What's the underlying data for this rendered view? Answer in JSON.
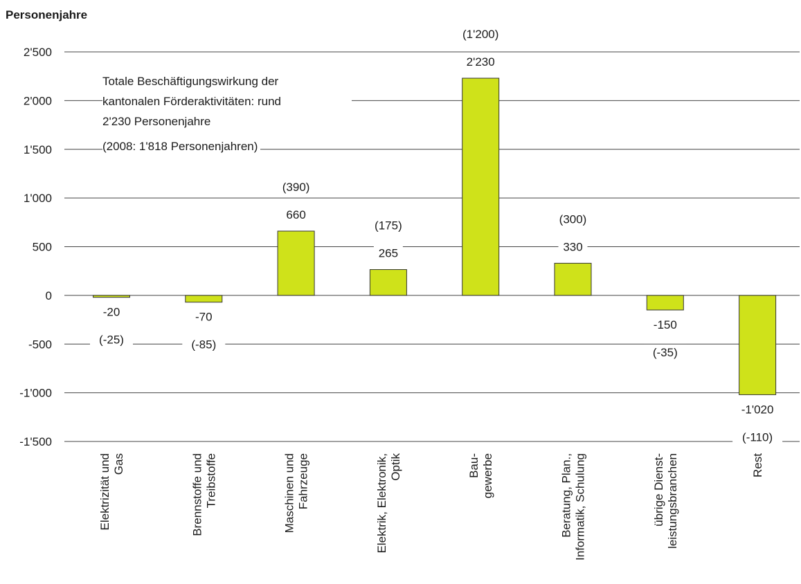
{
  "chart_data": {
    "type": "bar",
    "ylabel": "Personenjahre",
    "ylim": [
      -1500,
      2500
    ],
    "yticks": [
      2500,
      2000,
      1500,
      1000,
      500,
      0,
      -500,
      -1000,
      -1500
    ],
    "ytick_labels": [
      "2'500",
      "2'000",
      "1'500",
      "1'000",
      "500",
      "0",
      "-500",
      "-1'000",
      "-1'500"
    ],
    "grid": true,
    "bar_color": "#cfe21a",
    "categories": [
      [
        "Elektrizität und",
        "Gas"
      ],
      [
        "Brennstoffe und",
        "Treibstoffe"
      ],
      [
        "Maschinen und",
        "Fahrzeuge"
      ],
      [
        "Elektrik, Elektronik,",
        "Optik"
      ],
      [
        "Bau-",
        "gewerbe"
      ],
      [
        "Beratung, Plan.,",
        "Informatik, Schulung"
      ],
      [
        "übrige Dienst-",
        "leistungsbranchen"
      ],
      [
        "Rest"
      ]
    ],
    "values": [
      -20,
      -70,
      660,
      265,
      2230,
      330,
      -150,
      -1020
    ],
    "value_labels": [
      "-20",
      "-70",
      "660",
      "265",
      "2'230",
      "330",
      "-150",
      "-1'020"
    ],
    "previous_labels": [
      "(-25)",
      "(-85)",
      "(390)",
      "(175)",
      "(1'200)",
      "(300)",
      "(-35)",
      "(-110)"
    ],
    "annotation": {
      "lines": [
        "Totale Beschäftigungswirkung der",
        "kantonalen Förderaktivitäten:  rund",
        "2'230  Personenjahre"
      ],
      "sub": "(2008: 1'818 Personenjahren)"
    }
  }
}
